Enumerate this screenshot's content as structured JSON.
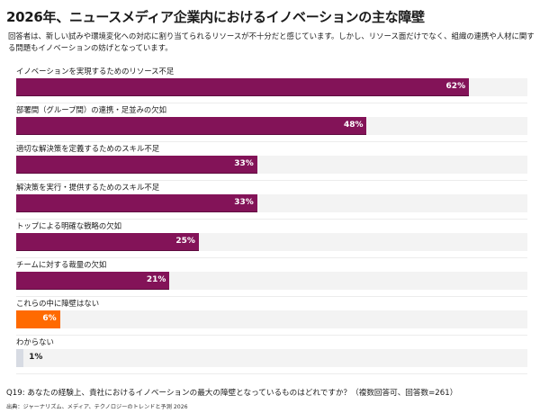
{
  "title": "2026年、ニュースメディア企業内におけるイノベーションの主な障壁",
  "subtitle": "回答者は、新しい試みや環境変化への対応に割り当てられるリソースが不十分だと感じています。しかし、リソース面だけでなく、組織の連携や人材に関する問題もイノベーションの妨げとなっています。",
  "footer": {
    "question": "Q19: あなたの経験上、貴社におけるイノベーションの最大の障壁となっているものはどれですか？（複数回答可、回答数=261）",
    "source": "出典：ジャーナリズム、メディア、テクノロジーのトレンドと予測 2026"
  },
  "colors": {
    "primary": "#831358",
    "highlight": "#ff6a00",
    "neutral": "#d7dbe3",
    "track": "#f3f3f3"
  },
  "chart_data": {
    "type": "bar",
    "orientation": "horizontal",
    "title": "2026年、ニュースメディア企業内におけるイノベーションの主な障壁",
    "xlabel": "",
    "ylabel": "",
    "unit": "%",
    "xlim": [
      0,
      70
    ],
    "grid": false,
    "legend": "none",
    "categories": [
      "イノベーションを実現するためのリソース不足",
      "部署間（グループ間）の連携・足並みの欠如",
      "適切な解決策を定義するためのスキル不足",
      "解決策を実行・提供するためのスキル不足",
      "トップによる明確な戦略の欠如",
      "チームに対する裁量の欠如",
      "これらの中に障壁はない",
      "わからない"
    ],
    "values": [
      62,
      48,
      33,
      33,
      25,
      21,
      6,
      1
    ],
    "value_labels": [
      "62%",
      "48%",
      "33%",
      "33%",
      "25%",
      "21%",
      "6%",
      "1%"
    ],
    "bar_colors": [
      "primary",
      "primary",
      "primary",
      "primary",
      "primary",
      "primary",
      "highlight",
      "neutral"
    ]
  }
}
